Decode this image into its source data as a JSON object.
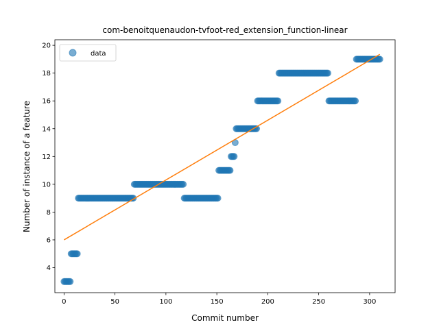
{
  "chart_data": {
    "type": "scatter",
    "title": "com-benoitquenaudon-tvfoot-red_extension_function-linear",
    "xlabel": "Commit number",
    "ylabel": "Number of instance of a feature",
    "xlim": [
      -9,
      325
    ],
    "ylim": [
      2.2,
      20.4
    ],
    "xticks": [
      0,
      50,
      100,
      150,
      200,
      250,
      300
    ],
    "yticks": [
      4,
      6,
      8,
      10,
      12,
      14,
      16,
      18,
      20
    ],
    "legend": {
      "position": "top-left",
      "entries": [
        "data"
      ]
    },
    "grid": false,
    "colors": {
      "points": "#1f77b4",
      "fit": "#ff7f0e"
    },
    "segments": [
      {
        "x_start": 0,
        "x_end": 6,
        "y": 3
      },
      {
        "x_start": 7,
        "x_end": 13,
        "y": 5
      },
      {
        "x_start": 14,
        "x_end": 68,
        "y": 9
      },
      {
        "x_start": 69,
        "x_end": 117,
        "y": 10
      },
      {
        "x_start": 118,
        "x_end": 151,
        "y": 9
      },
      {
        "x_start": 152,
        "x_end": 163,
        "y": 11
      },
      {
        "x_start": 164,
        "x_end": 167,
        "y": 12
      },
      {
        "x_start": 168,
        "x_end": 168,
        "y": 13
      },
      {
        "x_start": 169,
        "x_end": 189,
        "y": 14
      },
      {
        "x_start": 190,
        "x_end": 210,
        "y": 16
      },
      {
        "x_start": 211,
        "x_end": 259,
        "y": 18
      },
      {
        "x_start": 260,
        "x_end": 286,
        "y": 16
      },
      {
        "x_start": 287,
        "x_end": 310,
        "y": 19
      }
    ],
    "fit_line": {
      "x": [
        0,
        310
      ],
      "y": [
        6.0,
        19.35
      ]
    }
  }
}
